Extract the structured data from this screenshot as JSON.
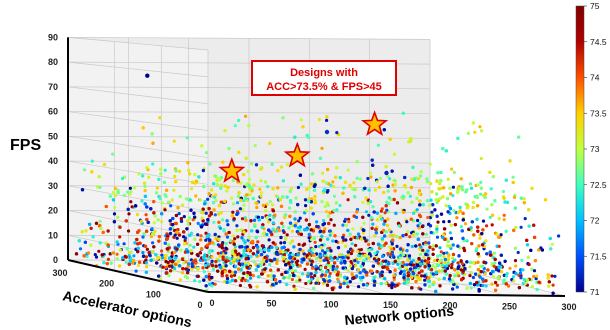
{
  "chart_data": {
    "type": "scatter",
    "projection": "3d",
    "x_axis": {
      "label": "Network options",
      "ticks": [
        "0",
        "50",
        "100",
        "150",
        "200",
        "250",
        "300"
      ],
      "range": [
        0,
        300
      ]
    },
    "y_axis": {
      "label": "Accelerator options",
      "ticks": [
        "0",
        "100",
        "200",
        "300"
      ],
      "range": [
        0,
        300
      ]
    },
    "z_axis": {
      "label": "FPS",
      "ticks": [
        "0",
        "10",
        "20",
        "30",
        "40",
        "50",
        "60",
        "70",
        "80",
        "90"
      ],
      "range": [
        0,
        90
      ]
    },
    "colorbar": {
      "label": "",
      "ticks": [
        "71",
        "71.5",
        "72",
        "72.5",
        "73",
        "73.5",
        "74",
        "74.5",
        "75"
      ],
      "range": [
        71,
        75
      ],
      "colormap": [
        "#00008f",
        "#0050ff",
        "#00c0ff",
        "#40ffbf",
        "#c0ff40",
        "#ffd000",
        "#ff5000",
        "#b00000",
        "#800000"
      ]
    },
    "annotation": {
      "line1": "Designs with",
      "line2": "ACC>73.5% & FPS>45"
    },
    "highlighted_points": [
      {
        "x": 20,
        "y": 0,
        "fps": 45,
        "accuracy": 73.6
      },
      {
        "x": 75,
        "y": 0,
        "fps": 51,
        "accuracy": 73.7
      },
      {
        "x": 140,
        "y": 0,
        "fps": 63,
        "accuracy": 73.8
      }
    ],
    "outlier_points": [
      {
        "x": 0,
        "y": 130,
        "fps": 78,
        "accuracy": 71
      },
      {
        "x": 100,
        "y": 0,
        "fps": 60,
        "accuracy": 71.3
      },
      {
        "x": 170,
        "y": 0,
        "fps": 57,
        "accuracy": 73.2
      },
      {
        "x": 150,
        "y": 0,
        "fps": 45,
        "accuracy": 71.2
      }
    ],
    "grid": true,
    "colors": {
      "pane": "#ececec",
      "grid": "#c8c8c8",
      "star_fill": "#ffc000",
      "star_edge": "#e00000",
      "annotation": "#e00000"
    }
  }
}
